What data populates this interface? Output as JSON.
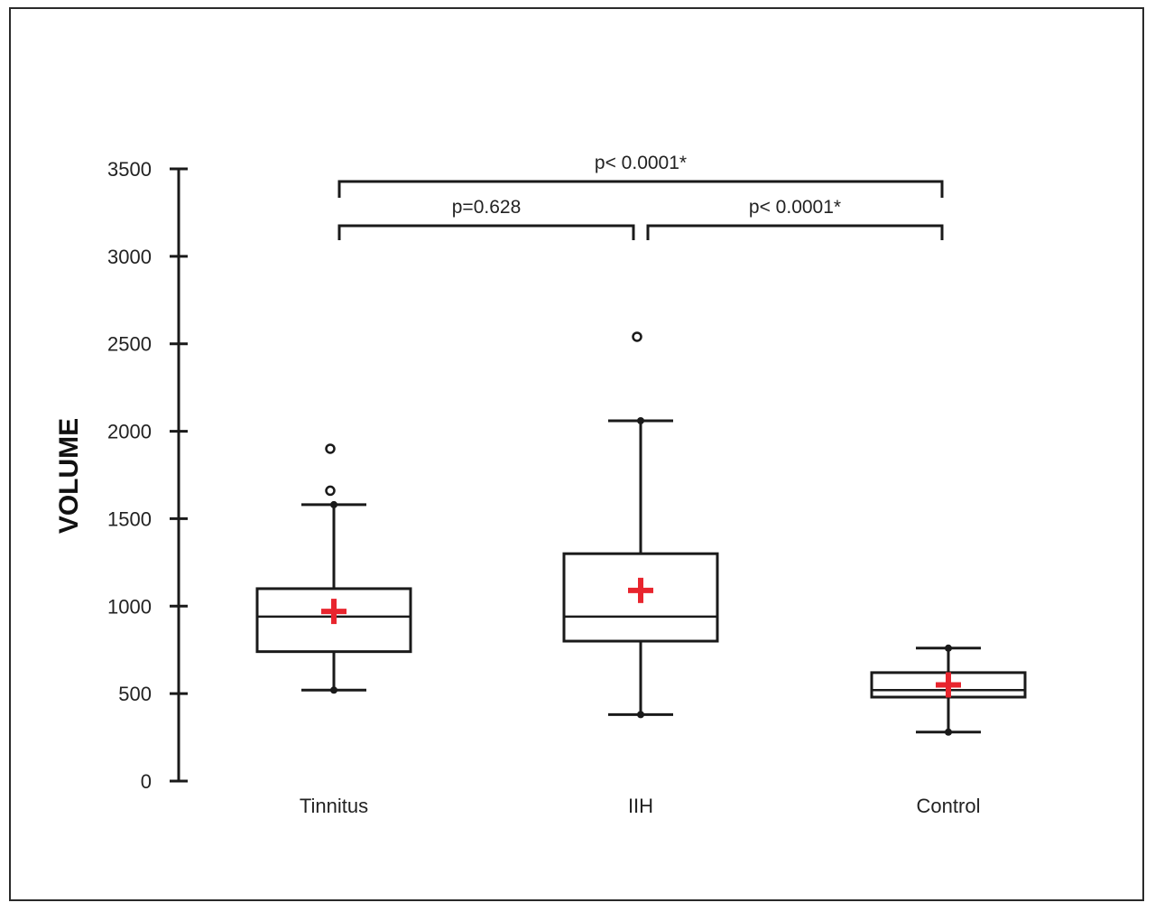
{
  "chart_data": {
    "type": "box",
    "ylabel": "VOLUME",
    "xlabel": "",
    "ylim": [
      0,
      3500
    ],
    "yticks": [
      0,
      500,
      1000,
      1500,
      2000,
      2500,
      3000,
      3500
    ],
    "categories": [
      "Tinnitus",
      "IIH",
      "Control"
    ],
    "boxes": [
      {
        "category": "Tinnitus",
        "whisker_low": 520,
        "q1": 740,
        "median": 940,
        "q3": 1100,
        "whisker_high": 1580,
        "mean": 970,
        "outliers": [
          1660,
          1900
        ]
      },
      {
        "category": "IIH",
        "whisker_low": 380,
        "q1": 800,
        "median": 940,
        "q3": 1300,
        "whisker_high": 2060,
        "mean": 1090,
        "outliers": [
          2540
        ]
      },
      {
        "category": "Control",
        "whisker_low": 280,
        "q1": 480,
        "median": 520,
        "q3": 620,
        "whisker_high": 760,
        "mean": 550,
        "outliers": []
      }
    ],
    "comparisons": [
      {
        "from": "Tinnitus",
        "to": "Control",
        "label": "p< 0.0001*"
      },
      {
        "from": "Tinnitus",
        "to": "IIH",
        "label": "p=0.628"
      },
      {
        "from": "IIH",
        "to": "Control",
        "label": "p< 0.0001*"
      }
    ],
    "colors": {
      "box": "#1a1a1a",
      "mean_marker": "#e8252e"
    }
  }
}
